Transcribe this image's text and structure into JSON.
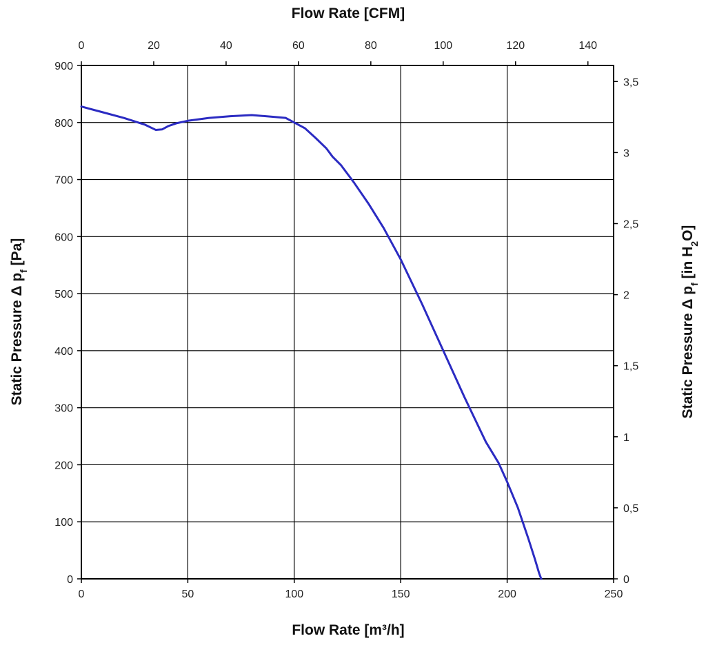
{
  "chart_data": {
    "type": "line",
    "xlabel": "Flow Rate [m³/h]",
    "x2label": "Flow Rate [CFM]",
    "ylabel": "Static Pressure Δ p",
    "ylabel_sub": "f",
    "ylabel_unit": " [Pa]",
    "y2label_prefix": "Static Pressure Δ p",
    "y2label_sub": "f",
    "y2label_mid": " [in H",
    "y2label_sub2": "2",
    "y2label_end": "O]",
    "xlim": [
      0,
      250
    ],
    "x2lim": [
      0,
      147.1
    ],
    "ylim": [
      0,
      900
    ],
    "y2lim": [
      0,
      3.613
    ],
    "grid": true,
    "x_ticks": [
      "0",
      "50",
      "100",
      "150",
      "200",
      "250"
    ],
    "x2_ticks": [
      "0",
      "20",
      "40",
      "60",
      "80",
      "100",
      "120",
      "140"
    ],
    "y_ticks": [
      "0",
      "100",
      "200",
      "300",
      "400",
      "500",
      "600",
      "700",
      "800",
      "900"
    ],
    "y2_ticks": [
      "0",
      "0,5",
      "1",
      "1,5",
      "2",
      "2,5",
      "3",
      "3,5"
    ],
    "line_color": "#2b2bc2",
    "series": [
      {
        "x": [
          0,
          10,
          20,
          30,
          35,
          38,
          41,
          45,
          50,
          60,
          70,
          80,
          90,
          96,
          100,
          105,
          110,
          115,
          118,
          122,
          128,
          135,
          142,
          150,
          160,
          170,
          180,
          190,
          196,
          200,
          205,
          210,
          213,
          215,
          216
        ],
        "y": [
          828,
          818,
          808,
          796,
          787,
          788,
          794,
          799,
          803,
          808,
          811,
          813,
          810,
          808,
          800,
          790,
          773,
          755,
          740,
          725,
          695,
          657,
          615,
          560,
          482,
          400,
          318,
          240,
          203,
          170,
          125,
          70,
          35,
          10,
          0
        ]
      }
    ]
  }
}
